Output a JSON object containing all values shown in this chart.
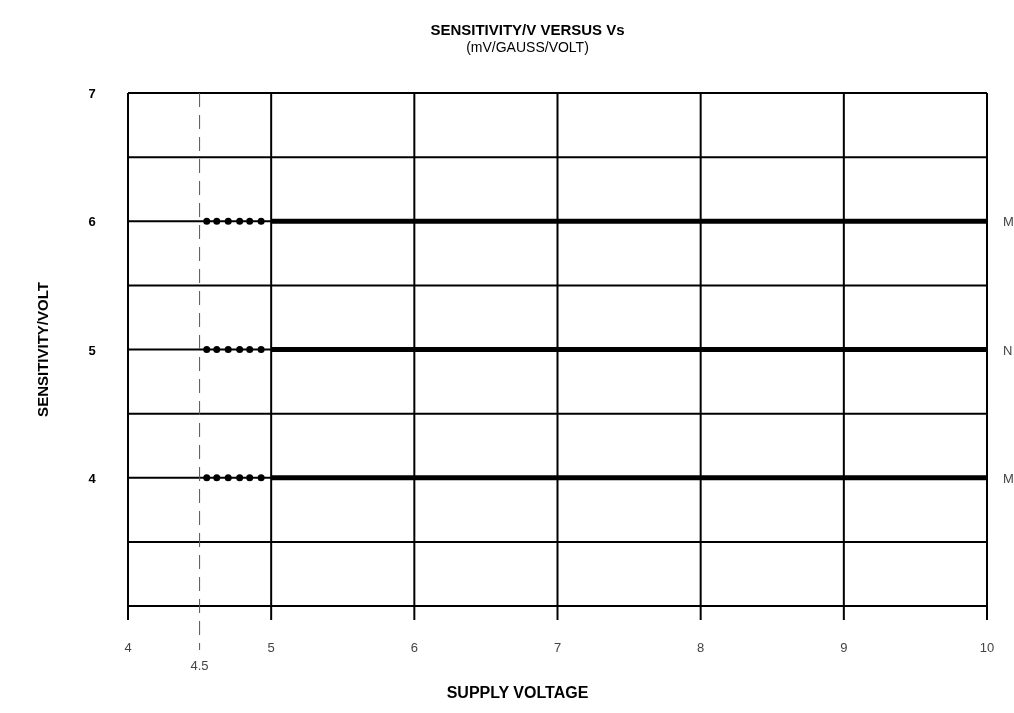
{
  "chart_data": {
    "type": "line",
    "title": "SENSITIVITY/V VERSUS Vs",
    "subtitle": "(mV/GAUSS/VOLT)",
    "xlabel": "SUPPLY VOLTAGE",
    "ylabel": "SENSITIVITY/VOLT",
    "xlim": [
      4,
      10
    ],
    "xticks": [
      4,
      5,
      6,
      7,
      8,
      9,
      10
    ],
    "ylim": [
      3,
      7
    ],
    "yticks": [
      {
        "value": 3.5,
        "label": null
      },
      4,
      {
        "value": 4.5,
        "label": null
      },
      5,
      {
        "value": 5.5,
        "label": null
      },
      6,
      {
        "value": 6.5,
        "label": null
      },
      7
    ],
    "grid": true,
    "line_style": "solid",
    "ref_lines": [
      {
        "axis": "x",
        "value": 4.5,
        "label": "4.5",
        "line_style": "dashed"
      }
    ],
    "series": [
      {
        "name": "M",
        "color": "#000000",
        "x": [
          5,
          10
        ],
        "values": [
          6,
          6
        ]
      },
      {
        "name": "N",
        "color": "#000000",
        "x": [
          5,
          10
        ],
        "values": [
          5,
          5
        ]
      },
      {
        "name": "M",
        "color": "#000000",
        "x": [
          5,
          10
        ],
        "values": [
          4,
          4
        ]
      },
      {
        "type": "scatter",
        "marker": "circle",
        "color": "#000000",
        "x": [
          4.55,
          4.62,
          4.7,
          4.78,
          4.85,
          4.93
        ],
        "values": [
          6,
          6,
          6,
          6,
          6,
          6
        ]
      },
      {
        "type": "scatter",
        "marker": "circle",
        "color": "#000000",
        "x": [
          4.55,
          4.62,
          4.7,
          4.78,
          4.85,
          4.93
        ],
        "values": [
          5,
          5,
          5,
          5,
          5,
          5
        ]
      },
      {
        "type": "scatter",
        "marker": "circle",
        "color": "#000000",
        "x": [
          4.55,
          4.62,
          4.7,
          4.78,
          4.85,
          4.93
        ],
        "values": [
          4,
          4,
          4,
          4,
          4,
          4
        ]
      }
    ]
  }
}
